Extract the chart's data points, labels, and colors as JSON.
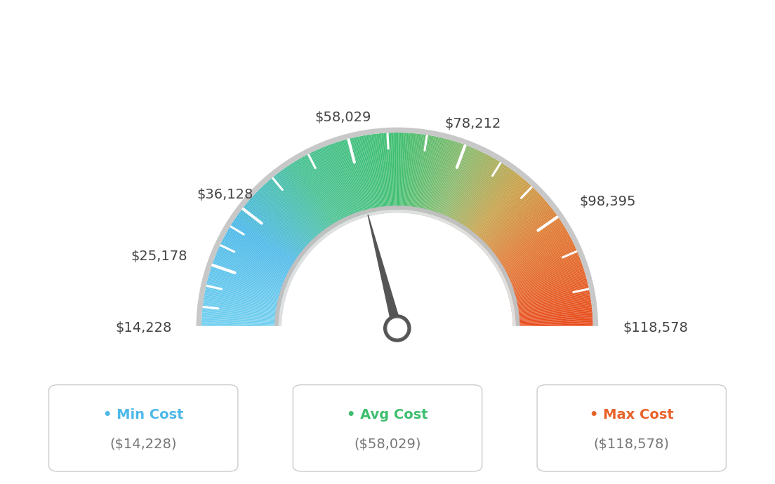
{
  "min_value": 14228,
  "max_value": 118578,
  "avg_value": 58029,
  "tick_labels": [
    "$14,228",
    "$25,178",
    "$36,128",
    "$58,029",
    "$78,212",
    "$98,395",
    "$118,578"
  ],
  "tick_values": [
    14228,
    25178,
    36128,
    58029,
    78212,
    98395,
    118578
  ],
  "legend_labels": [
    "Min Cost",
    "Avg Cost",
    "Max Cost"
  ],
  "legend_values": [
    "($14,228)",
    "($58,029)",
    "($118,578)"
  ],
  "legend_colors": [
    "#4db8e8",
    "#3dbe6e",
    "#e8622a"
  ],
  "bg_color": "#ffffff",
  "needle_color": "#555555",
  "colors_gradient": [
    [
      0.0,
      "#72d0f0"
    ],
    [
      0.18,
      "#4ab8e8"
    ],
    [
      0.33,
      "#45c090"
    ],
    [
      0.5,
      "#3dbe6e"
    ],
    [
      0.62,
      "#8ab86a"
    ],
    [
      0.72,
      "#c8a048"
    ],
    [
      0.82,
      "#e07830"
    ],
    [
      1.0,
      "#e84818"
    ]
  ],
  "outer_r": 1.05,
  "inner_r": 0.62,
  "label_fontsize": 14,
  "legend_fontsize": 14
}
